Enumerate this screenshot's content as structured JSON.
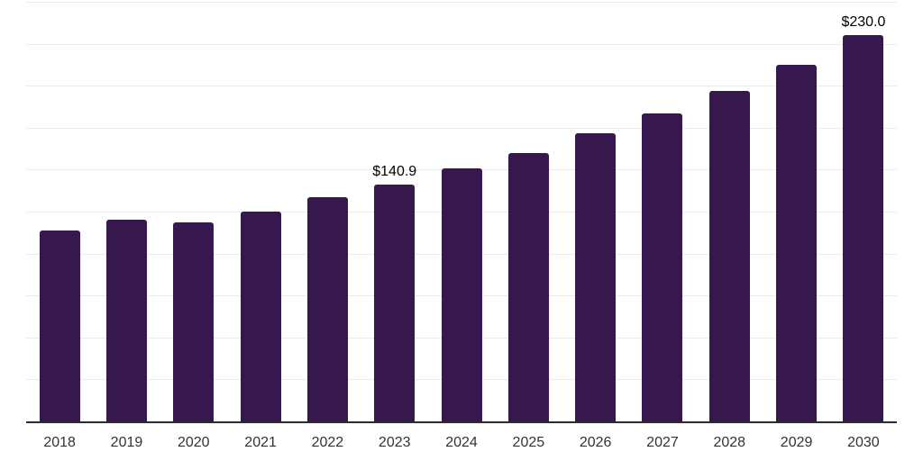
{
  "chart_data": {
    "type": "bar",
    "title": "",
    "xlabel": "",
    "ylabel": "",
    "categories": [
      "2018",
      "2019",
      "2020",
      "2021",
      "2022",
      "2023",
      "2024",
      "2025",
      "2026",
      "2027",
      "2028",
      "2029",
      "2030"
    ],
    "values": [
      113.5,
      120.0,
      118.5,
      125.0,
      133.5,
      140.9,
      150.5,
      160.0,
      171.5,
      183.5,
      197.0,
      212.5,
      230.0
    ],
    "value_labels": {
      "2023": "$140.9",
      "2030": "$230.0"
    },
    "ylim": [
      0,
      250
    ],
    "gridline_interval": 25,
    "grid": true,
    "legend_position": "none",
    "y_axis_ticks_visible": false,
    "bar_color": "#36174E",
    "background_color": "#ffffff",
    "axis_color": "#2b2b2b",
    "gridline_color": "#ebebeb",
    "tick_label_color": "#333333",
    "value_label_color": "#000000"
  }
}
